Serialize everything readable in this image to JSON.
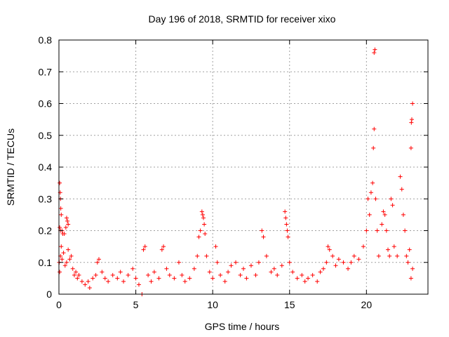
{
  "chart_data": {
    "type": "scatter",
    "title": "Day 196 of 2018, SRMTID for receiver xixo",
    "xlabel": "GPS time / hours",
    "ylabel": "SRMTID / TECUs",
    "xlim": [
      0,
      24
    ],
    "ylim": [
      0,
      0.8
    ],
    "xticks": [
      0,
      5,
      10,
      15,
      20
    ],
    "yticks": [
      0,
      0.1,
      0.2,
      0.3,
      0.4,
      0.5,
      0.6,
      0.7,
      0.8
    ],
    "xtick_labels": [
      "0",
      "5",
      "10",
      "15",
      "20"
    ],
    "ytick_labels": [
      "0",
      "0.1",
      "0.2",
      "0.3",
      "0.4",
      "0.5",
      "0.6",
      "0.7",
      "0.8"
    ],
    "grid": true,
    "marker": "+",
    "color": "#ff0000",
    "series": [
      {
        "name": "SRMTID",
        "points": [
          [
            0.05,
            0.35
          ],
          [
            0.08,
            0.32
          ],
          [
            0.1,
            0.3
          ],
          [
            0.12,
            0.27
          ],
          [
            0.15,
            0.25
          ],
          [
            0.05,
            0.21
          ],
          [
            0.1,
            0.2
          ],
          [
            0.2,
            0.2
          ],
          [
            0.25,
            0.19
          ],
          [
            0.35,
            0.19
          ],
          [
            0.45,
            0.21
          ],
          [
            0.5,
            0.24
          ],
          [
            0.55,
            0.23
          ],
          [
            0.6,
            0.22
          ],
          [
            0.02,
            0.1
          ],
          [
            0.05,
            0.07
          ],
          [
            0.1,
            0.12
          ],
          [
            0.15,
            0.15
          ],
          [
            0.2,
            0.11
          ],
          [
            0.3,
            0.13
          ],
          [
            0.4,
            0.09
          ],
          [
            0.5,
            0.1
          ],
          [
            0.6,
            0.14
          ],
          [
            0.7,
            0.11
          ],
          [
            0.8,
            0.12
          ],
          [
            0.9,
            0.08
          ],
          [
            1.0,
            0.06
          ],
          [
            1.1,
            0.07
          ],
          [
            1.2,
            0.05
          ],
          [
            1.3,
            0.06
          ],
          [
            1.5,
            0.04
          ],
          [
            1.7,
            0.03
          ],
          [
            1.9,
            0.04
          ],
          [
            2.0,
            0.02
          ],
          [
            2.2,
            0.05
          ],
          [
            2.4,
            0.06
          ],
          [
            2.5,
            0.1
          ],
          [
            2.6,
            0.11
          ],
          [
            2.8,
            0.07
          ],
          [
            3.0,
            0.05
          ],
          [
            3.2,
            0.04
          ],
          [
            3.5,
            0.06
          ],
          [
            3.8,
            0.05
          ],
          [
            4.0,
            0.07
          ],
          [
            4.2,
            0.04
          ],
          [
            4.5,
            0.06
          ],
          [
            4.8,
            0.08
          ],
          [
            5.0,
            0.05
          ],
          [
            5.2,
            0.03
          ],
          [
            5.4,
            0.0
          ],
          [
            5.5,
            0.14
          ],
          [
            5.6,
            0.15
          ],
          [
            5.8,
            0.06
          ],
          [
            6.0,
            0.04
          ],
          [
            6.2,
            0.07
          ],
          [
            6.5,
            0.05
          ],
          [
            6.7,
            0.14
          ],
          [
            6.8,
            0.15
          ],
          [
            7.0,
            0.08
          ],
          [
            7.2,
            0.06
          ],
          [
            7.5,
            0.05
          ],
          [
            7.8,
            0.1
          ],
          [
            8.0,
            0.06
          ],
          [
            8.2,
            0.04
          ],
          [
            8.5,
            0.05
          ],
          [
            8.8,
            0.08
          ],
          [
            9.0,
            0.12
          ],
          [
            9.1,
            0.18
          ],
          [
            9.2,
            0.2
          ],
          [
            9.3,
            0.26
          ],
          [
            9.35,
            0.25
          ],
          [
            9.4,
            0.24
          ],
          [
            9.45,
            0.22
          ],
          [
            9.5,
            0.19
          ],
          [
            9.6,
            0.12
          ],
          [
            9.8,
            0.07
          ],
          [
            10.0,
            0.05
          ],
          [
            10.2,
            0.15
          ],
          [
            10.3,
            0.1
          ],
          [
            10.5,
            0.06
          ],
          [
            10.8,
            0.04
          ],
          [
            11.0,
            0.07
          ],
          [
            11.2,
            0.09
          ],
          [
            11.5,
            0.1
          ],
          [
            11.8,
            0.06
          ],
          [
            12.0,
            0.08
          ],
          [
            12.2,
            0.05
          ],
          [
            12.5,
            0.09
          ],
          [
            12.8,
            0.06
          ],
          [
            13.0,
            0.1
          ],
          [
            13.2,
            0.2
          ],
          [
            13.3,
            0.18
          ],
          [
            13.5,
            0.12
          ],
          [
            13.8,
            0.07
          ],
          [
            14.0,
            0.08
          ],
          [
            14.2,
            0.06
          ],
          [
            14.5,
            0.09
          ],
          [
            14.7,
            0.26
          ],
          [
            14.75,
            0.24
          ],
          [
            14.8,
            0.22
          ],
          [
            14.85,
            0.2
          ],
          [
            14.9,
            0.18
          ],
          [
            15.0,
            0.1
          ],
          [
            15.2,
            0.07
          ],
          [
            15.5,
            0.05
          ],
          [
            15.8,
            0.06
          ],
          [
            16.0,
            0.04
          ],
          [
            16.2,
            0.05
          ],
          [
            16.5,
            0.06
          ],
          [
            16.8,
            0.04
          ],
          [
            17.0,
            0.07
          ],
          [
            17.2,
            0.08
          ],
          [
            17.4,
            0.1
          ],
          [
            17.5,
            0.15
          ],
          [
            17.6,
            0.14
          ],
          [
            17.8,
            0.12
          ],
          [
            18.0,
            0.09
          ],
          [
            18.2,
            0.11
          ],
          [
            18.5,
            0.1
          ],
          [
            18.8,
            0.08
          ],
          [
            19.0,
            0.1
          ],
          [
            19.2,
            0.12
          ],
          [
            19.5,
            0.11
          ],
          [
            19.8,
            0.15
          ],
          [
            20.0,
            0.2
          ],
          [
            20.1,
            0.3
          ],
          [
            20.2,
            0.25
          ],
          [
            20.3,
            0.32
          ],
          [
            20.4,
            0.35
          ],
          [
            20.45,
            0.46
          ],
          [
            20.5,
            0.52
          ],
          [
            20.5,
            0.76
          ],
          [
            20.55,
            0.77
          ],
          [
            20.6,
            0.3
          ],
          [
            20.7,
            0.2
          ],
          [
            20.8,
            0.12
          ],
          [
            21.0,
            0.22
          ],
          [
            21.1,
            0.26
          ],
          [
            21.2,
            0.25
          ],
          [
            21.3,
            0.2
          ],
          [
            21.4,
            0.14
          ],
          [
            21.5,
            0.12
          ],
          [
            21.6,
            0.3
          ],
          [
            21.7,
            0.28
          ],
          [
            21.8,
            0.15
          ],
          [
            22.0,
            0.12
          ],
          [
            22.2,
            0.37
          ],
          [
            22.3,
            0.33
          ],
          [
            22.4,
            0.25
          ],
          [
            22.5,
            0.2
          ],
          [
            22.6,
            0.12
          ],
          [
            22.7,
            0.1
          ],
          [
            22.8,
            0.14
          ],
          [
            22.9,
            0.46
          ],
          [
            22.92,
            0.54
          ],
          [
            22.95,
            0.55
          ],
          [
            23.0,
            0.6
          ],
          [
            23.0,
            0.08
          ],
          [
            22.9,
            0.05
          ]
        ]
      }
    ]
  }
}
